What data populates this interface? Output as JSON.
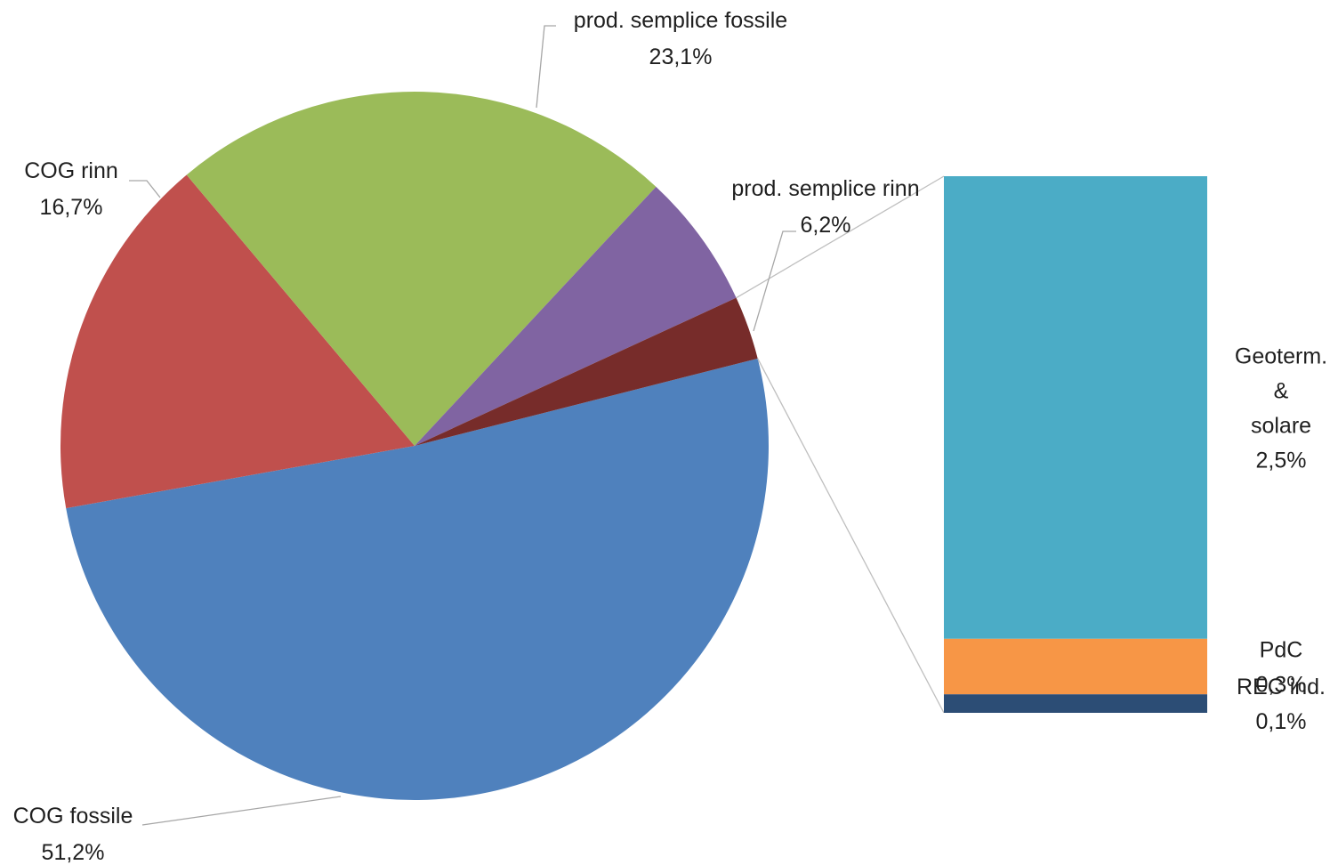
{
  "chart_data": {
    "type": "bar-of-pie",
    "title": "",
    "pie": {
      "slices": [
        {
          "name": "COG fossile",
          "value": 51.2,
          "label": "51,2%",
          "color": "#4f81bd"
        },
        {
          "name": "COG rinn",
          "value": 16.7,
          "label": "16,7%",
          "color": "#c0504d"
        },
        {
          "name": "prod. semplice fossile",
          "value": 23.1,
          "label": "23,1%",
          "color": "#9bbb59"
        },
        {
          "name": "prod. semplice rinn",
          "value": 6.2,
          "label": "6,2%",
          "color": "#8064a2"
        },
        {
          "name": "",
          "value": 2.9,
          "label": "",
          "color": "#772c2a"
        }
      ]
    },
    "bar": {
      "segments": [
        {
          "name": "Geoterm. & solare",
          "name_lines": [
            "Geoterm.",
            "&",
            "solare"
          ],
          "value": 2.5,
          "label": "2,5%",
          "color": "#4bacc6"
        },
        {
          "name": "PdC",
          "name_lines": [
            "PdC"
          ],
          "value": 0.3,
          "label": "0,3%",
          "color": "#f79646"
        },
        {
          "name": "REC ind.",
          "name_lines": [
            "REC ind."
          ],
          "value": 0.1,
          "label": "0,1%",
          "color": "#2c4d75"
        }
      ]
    }
  }
}
